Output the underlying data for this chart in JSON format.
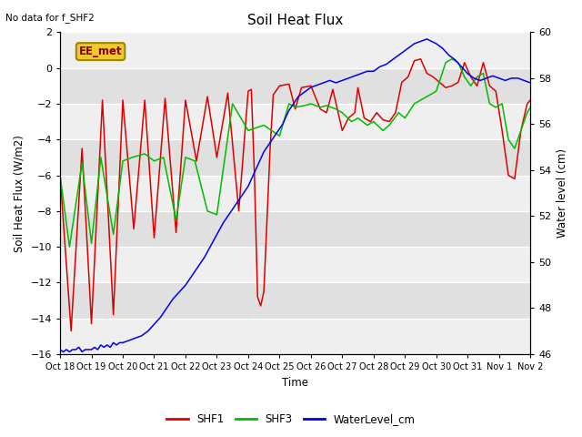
{
  "title": "Soil Heat Flux",
  "ylabel_left": "Soil Heat Flux (W/m2)",
  "ylabel_right": "Water level (cm)",
  "xlabel": "Time",
  "note": "No data for f_SHF2",
  "station_label": "EE_met",
  "ylim_left": [
    -16,
    2
  ],
  "ylim_right": [
    46,
    60
  ],
  "yticks_left": [
    -16,
    -14,
    -12,
    -10,
    -8,
    -6,
    -4,
    -2,
    0,
    2
  ],
  "yticks_right": [
    46,
    48,
    50,
    52,
    54,
    56,
    58,
    60
  ],
  "xtick_labels": [
    "Oct 18",
    "Oct 19",
    "Oct 20",
    "Oct 21",
    "Oct 22",
    "Oct 23",
    "Oct 24",
    "Oct 25",
    "Oct 26",
    "Oct 27",
    "Oct 28",
    "Oct 29",
    "Oct 30",
    "Oct 31",
    "Nov 1",
    "Nov 2"
  ],
  "background_color": "#ffffff",
  "plot_bg_color": "#e0e0e0",
  "plot_bg_light": "#efefef",
  "shf1_color": "#dd0000",
  "shf3_color": "#00bb00",
  "wl_color": "#0000ee",
  "legend_entries": [
    "SHF1",
    "SHF3",
    "WaterLevel_cm"
  ],
  "shf1_x": [
    0.0,
    0.35,
    0.7,
    1.0,
    1.35,
    1.7,
    2.0,
    2.35,
    2.7,
    3.0,
    3.35,
    3.7,
    4.0,
    4.35,
    4.7,
    5.0,
    5.35,
    5.7,
    6.0,
    6.1,
    6.2,
    6.3,
    6.4,
    6.5,
    6.7,
    6.8,
    7.0,
    7.3,
    7.5,
    7.7,
    8.0,
    8.3,
    8.5,
    8.7,
    9.0,
    9.2,
    9.4,
    9.5,
    9.7,
    9.9,
    10.1,
    10.3,
    10.5,
    10.7,
    10.9,
    11.1,
    11.3,
    11.5,
    11.7,
    11.9,
    12.1,
    12.3,
    12.5,
    12.7,
    12.9,
    13.1,
    13.3,
    13.5,
    13.7,
    13.9,
    14.1,
    14.3,
    14.5,
    14.7,
    14.9,
    15.0
  ],
  "shf1_y": [
    -6.0,
    -14.7,
    -4.5,
    -14.3,
    -1.8,
    -13.8,
    -1.8,
    -9.0,
    -1.8,
    -9.5,
    -1.7,
    -9.2,
    -1.8,
    -5.2,
    -1.6,
    -5.0,
    -1.4,
    -8.0,
    -1.3,
    -1.2,
    -6.0,
    -12.8,
    -13.3,
    -12.5,
    -4.5,
    -1.5,
    -1.0,
    -0.9,
    -2.3,
    -1.1,
    -1.0,
    -2.3,
    -2.5,
    -1.2,
    -3.5,
    -2.8,
    -2.5,
    -1.1,
    -2.8,
    -3.0,
    -2.5,
    -2.9,
    -3.0,
    -2.5,
    -0.8,
    -0.5,
    0.4,
    0.5,
    -0.3,
    -0.5,
    -0.8,
    -1.1,
    -1.0,
    -0.8,
    0.3,
    -0.5,
    -1.0,
    0.3,
    -1.0,
    -1.3,
    -3.5,
    -6.0,
    -6.2,
    -3.5,
    -2.0,
    -1.8
  ],
  "shf3_x": [
    0.0,
    0.3,
    0.7,
    1.0,
    1.3,
    1.7,
    2.0,
    2.3,
    2.7,
    3.0,
    3.3,
    3.7,
    4.0,
    4.3,
    4.7,
    5.0,
    5.5,
    6.0,
    6.5,
    7.0,
    7.3,
    7.5,
    7.8,
    8.0,
    8.3,
    8.5,
    8.8,
    9.0,
    9.3,
    9.5,
    9.8,
    10.0,
    10.3,
    10.5,
    10.8,
    11.0,
    11.3,
    11.5,
    11.8,
    12.0,
    12.3,
    12.5,
    12.7,
    12.9,
    13.1,
    13.3,
    13.5,
    13.7,
    13.9,
    14.1,
    14.3,
    14.5,
    14.7,
    14.9,
    15.0
  ],
  "shf3_y": [
    -6.0,
    -10.0,
    -5.3,
    -9.8,
    -5.0,
    -9.3,
    -5.2,
    -5.0,
    -4.8,
    -5.2,
    -5.0,
    -8.5,
    -5.0,
    -5.2,
    -8.0,
    -8.2,
    -2.0,
    -3.5,
    -3.2,
    -3.8,
    -2.0,
    -2.2,
    -2.1,
    -2.0,
    -2.2,
    -2.1,
    -2.3,
    -2.5,
    -3.0,
    -2.8,
    -3.2,
    -3.0,
    -3.5,
    -3.2,
    -2.5,
    -2.8,
    -2.0,
    -1.8,
    -1.5,
    -1.3,
    0.3,
    0.5,
    0.3,
    -0.5,
    -1.0,
    -0.5,
    -0.3,
    -2.0,
    -2.2,
    -2.0,
    -4.0,
    -4.5,
    -3.5,
    -2.5,
    -2.2
  ],
  "wl_x": [
    0.0,
    0.1,
    0.2,
    0.3,
    0.4,
    0.5,
    0.6,
    0.7,
    0.8,
    0.9,
    1.0,
    1.1,
    1.2,
    1.3,
    1.4,
    1.5,
    1.6,
    1.7,
    1.8,
    1.9,
    2.0,
    2.2,
    2.4,
    2.6,
    2.8,
    3.0,
    3.2,
    3.4,
    3.6,
    3.8,
    4.0,
    4.2,
    4.4,
    4.6,
    4.8,
    5.0,
    5.2,
    5.4,
    5.6,
    5.8,
    6.0,
    6.1,
    6.2,
    6.3,
    6.4,
    6.5,
    6.6,
    6.7,
    6.8,
    6.9,
    7.0,
    7.1,
    7.2,
    7.3,
    7.4,
    7.5,
    7.6,
    7.7,
    7.8,
    7.9,
    8.0,
    8.2,
    8.4,
    8.6,
    8.8,
    9.0,
    9.2,
    9.4,
    9.6,
    9.8,
    10.0,
    10.2,
    10.4,
    10.6,
    10.8,
    11.0,
    11.2,
    11.3,
    11.5,
    11.7,
    12.0,
    12.2,
    12.4,
    12.6,
    12.8,
    13.0,
    13.2,
    13.4,
    13.6,
    13.8,
    14.0,
    14.2,
    14.4,
    14.6,
    14.8,
    15.0
  ],
  "wl_y": [
    46.2,
    46.1,
    46.2,
    46.1,
    46.2,
    46.2,
    46.3,
    46.1,
    46.2,
    46.2,
    46.2,
    46.3,
    46.2,
    46.4,
    46.3,
    46.4,
    46.3,
    46.5,
    46.4,
    46.5,
    46.5,
    46.6,
    46.7,
    46.8,
    47.0,
    47.3,
    47.6,
    48.0,
    48.4,
    48.7,
    49.0,
    49.4,
    49.8,
    50.2,
    50.7,
    51.2,
    51.7,
    52.1,
    52.5,
    52.9,
    53.3,
    53.6,
    53.9,
    54.2,
    54.5,
    54.8,
    55.0,
    55.2,
    55.4,
    55.6,
    55.8,
    56.0,
    56.3,
    56.6,
    56.8,
    57.0,
    57.2,
    57.3,
    57.4,
    57.5,
    57.6,
    57.7,
    57.8,
    57.9,
    57.8,
    57.9,
    58.0,
    58.1,
    58.2,
    58.3,
    58.3,
    58.5,
    58.6,
    58.8,
    59.0,
    59.2,
    59.4,
    59.5,
    59.6,
    59.7,
    59.5,
    59.3,
    59.0,
    58.8,
    58.5,
    58.2,
    58.0,
    57.9,
    58.0,
    58.1,
    58.0,
    57.9,
    58.0,
    58.0,
    57.9,
    57.8
  ]
}
